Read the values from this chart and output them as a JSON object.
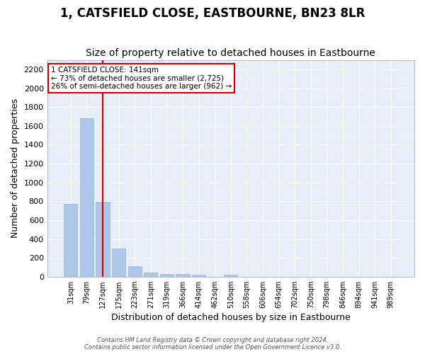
{
  "title": "1, CATSFIELD CLOSE, EASTBOURNE, BN23 8LR",
  "subtitle": "Size of property relative to detached houses in Eastbourne",
  "xlabel": "Distribution of detached houses by size in Eastbourne",
  "ylabel": "Number of detached properties",
  "categories": [
    "31sqm",
    "79sqm",
    "127sqm",
    "175sqm",
    "223sqm",
    "271sqm",
    "319sqm",
    "366sqm",
    "414sqm",
    "462sqm",
    "510sqm",
    "558sqm",
    "606sqm",
    "654sqm",
    "702sqm",
    "750sqm",
    "798sqm",
    "846sqm",
    "894sqm",
    "941sqm",
    "989sqm"
  ],
  "values": [
    770,
    1680,
    795,
    300,
    110,
    45,
    32,
    25,
    20,
    0,
    20,
    0,
    0,
    0,
    0,
    0,
    0,
    0,
    0,
    0,
    0
  ],
  "bar_color": "#aec6e8",
  "bar_edge_color": "#9ab8d8",
  "vline_x": 2,
  "vline_color": "#cc0000",
  "annotation_text": "1 CATSFIELD CLOSE: 141sqm\n← 73% of detached houses are smaller (2,725)\n26% of semi-detached houses are larger (962) →",
  "annotation_box_color": "#ffffff",
  "annotation_box_edge": "#cc0000",
  "ylim": [
    0,
    2300
  ],
  "yticks": [
    0,
    200,
    400,
    600,
    800,
    1000,
    1200,
    1400,
    1600,
    1800,
    2000,
    2200
  ],
  "background_color": "#e8eef8",
  "grid_color": "#ffffff",
  "footer_line1": "Contains HM Land Registry data © Crown copyright and database right 2024.",
  "footer_line2": "Contains public sector information licensed under the Open Government Licence v3.0.",
  "title_fontsize": 12,
  "subtitle_fontsize": 10,
  "xlabel_fontsize": 9,
  "ylabel_fontsize": 9,
  "fig_width": 6.0,
  "fig_height": 5.0
}
